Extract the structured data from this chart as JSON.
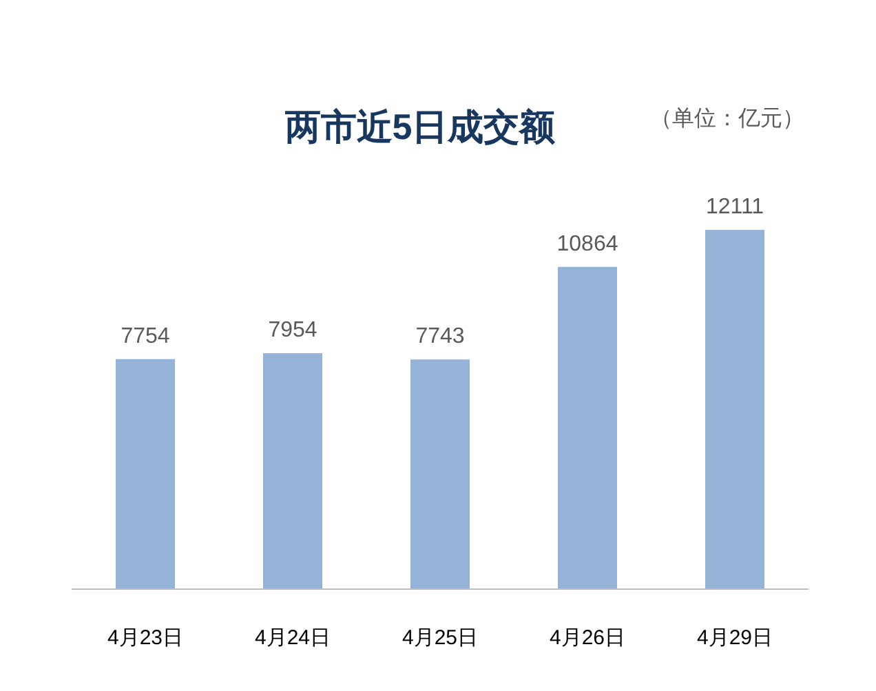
{
  "chart_data": {
    "type": "bar",
    "title": "两市近5日成交额",
    "annotations": [
      "（单位：亿元）"
    ],
    "categories": [
      "4月23日",
      "4月24日",
      "4月25日",
      "4月26日",
      "4月29日"
    ],
    "values": [
      7754,
      7954,
      7743,
      10864,
      12111
    ],
    "color": "#95b3d7",
    "data_labels": true
  }
}
